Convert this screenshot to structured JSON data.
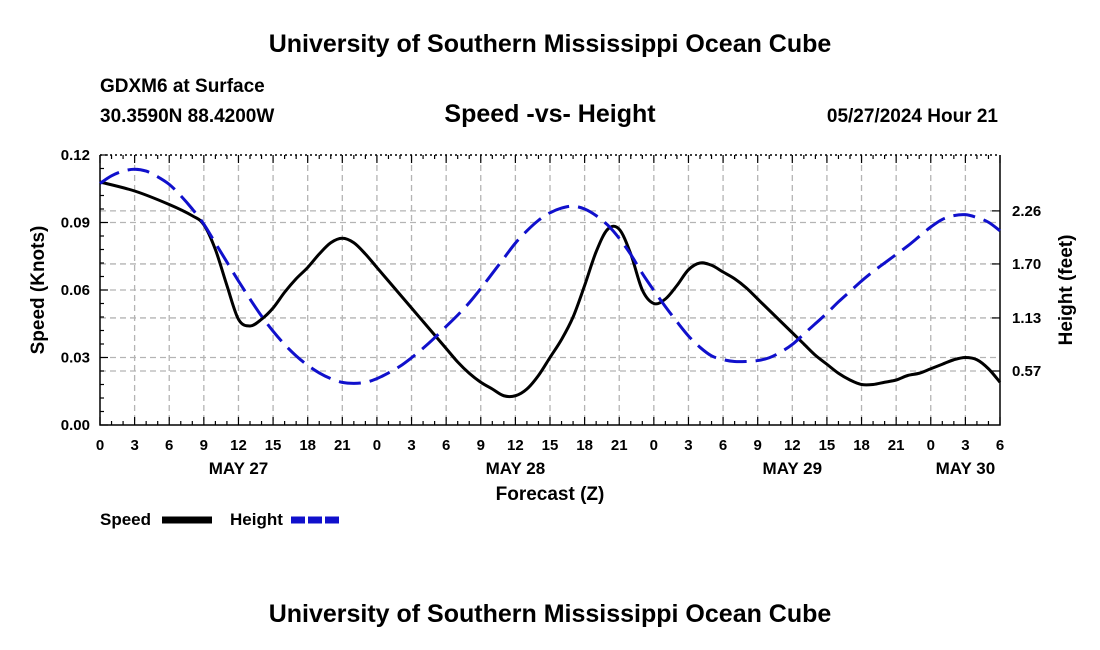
{
  "page": {
    "title_top": "University of Southern Mississippi Ocean Cube",
    "title_bottom": "University of Southern Mississippi Ocean Cube",
    "station": "GDXM6 at Surface",
    "coords": "30.3590N  88.4200W",
    "subtitle": "Speed -vs- Height",
    "datetime": "05/27/2024 Hour 21"
  },
  "colors": {
    "speed": "#000000",
    "height": "#1010cc",
    "grid": "#b4b4b4"
  },
  "chart_data": {
    "type": "line",
    "title": "Speed -vs- Height",
    "xlabel": "Forecast (Z)",
    "ylabel": "Speed (Knots)",
    "y2label": "Height (feet)",
    "x_unit": "hours from 00Z May 27",
    "xlim": [
      0,
      78
    ],
    "ylim": [
      0,
      0.12
    ],
    "y2lim": [
      0,
      2.85
    ],
    "yticks": [
      0.0,
      0.03,
      0.06,
      0.09,
      0.12
    ],
    "ytick_labels": [
      "0.00",
      "0.03",
      "0.06",
      "0.09",
      "0.12"
    ],
    "y2ticks": [
      0.57,
      1.13,
      1.7,
      2.26
    ],
    "y2tick_labels": [
      "0.57",
      "1.13",
      "1.70",
      "2.26"
    ],
    "xticks": [
      0,
      3,
      6,
      9,
      12,
      15,
      18,
      21,
      24,
      27,
      30,
      33,
      36,
      39,
      42,
      45,
      48,
      51,
      54,
      57,
      60,
      63,
      66,
      69,
      72,
      75,
      78
    ],
    "xtick_labels": [
      "0",
      "3",
      "6",
      "9",
      "12",
      "15",
      "18",
      "21",
      "0",
      "3",
      "6",
      "9",
      "12",
      "15",
      "18",
      "21",
      "0",
      "3",
      "6",
      "9",
      "12",
      "15",
      "18",
      "21",
      "0",
      "3",
      "6"
    ],
    "date_labels": [
      {
        "x": 12,
        "text": "MAY 27"
      },
      {
        "x": 36,
        "text": "MAY 28"
      },
      {
        "x": 60,
        "text": "MAY 29"
      },
      {
        "x": 75,
        "text": "MAY 30"
      }
    ],
    "grid": true,
    "legend": [
      {
        "name": "Speed",
        "style": "solid"
      },
      {
        "name": "Height",
        "style": "dashed"
      }
    ],
    "legend_position": "bottom-left",
    "series": [
      {
        "name": "Speed",
        "axis": "left",
        "style": "solid",
        "x": [
          0,
          3,
          6,
          8,
          9,
          10,
          11,
          12,
          13,
          14,
          15,
          16,
          17,
          18,
          19,
          20,
          21,
          22,
          23,
          24,
          25,
          26,
          27,
          28,
          29,
          30,
          31,
          32,
          33,
          34,
          35,
          36,
          37,
          38,
          39,
          40,
          41,
          42,
          43,
          44,
          45,
          46,
          47,
          48,
          49,
          50,
          51,
          52,
          53,
          54,
          55,
          56,
          57,
          58,
          59,
          60,
          61,
          62,
          63,
          64,
          65,
          66,
          67,
          68,
          69,
          70,
          71,
          72,
          73,
          74,
          75,
          76,
          77,
          78
        ],
        "values": [
          0.108,
          0.104,
          0.098,
          0.093,
          0.089,
          0.078,
          0.062,
          0.047,
          0.044,
          0.047,
          0.052,
          0.059,
          0.065,
          0.07,
          0.076,
          0.081,
          0.083,
          0.081,
          0.076,
          0.07,
          0.064,
          0.058,
          0.052,
          0.046,
          0.04,
          0.034,
          0.028,
          0.023,
          0.019,
          0.016,
          0.013,
          0.013,
          0.016,
          0.022,
          0.03,
          0.038,
          0.048,
          0.062,
          0.077,
          0.087,
          0.087,
          0.076,
          0.06,
          0.054,
          0.056,
          0.062,
          0.069,
          0.072,
          0.071,
          0.068,
          0.065,
          0.061,
          0.056,
          0.051,
          0.046,
          0.041,
          0.036,
          0.031,
          0.027,
          0.023,
          0.02,
          0.018,
          0.018,
          0.019,
          0.02,
          0.022,
          0.023,
          0.025,
          0.027,
          0.029,
          0.03,
          0.029,
          0.025,
          0.019
        ]
      },
      {
        "name": "Height",
        "axis": "right",
        "style": "dashed",
        "x": [
          0,
          1,
          2,
          3,
          4,
          5,
          6,
          7,
          8,
          9,
          10,
          11,
          12,
          13,
          14,
          15,
          16,
          17,
          18,
          19,
          20,
          21,
          22,
          23,
          24,
          25,
          26,
          27,
          28,
          29,
          30,
          31,
          32,
          33,
          34,
          35,
          36,
          37,
          38,
          39,
          40,
          41,
          42,
          43,
          44,
          45,
          46,
          47,
          48,
          49,
          50,
          51,
          52,
          53,
          54,
          55,
          56,
          57,
          58,
          59,
          60,
          61,
          62,
          63,
          64,
          65,
          66,
          67,
          68,
          69,
          70,
          71,
          72,
          73,
          74,
          75,
          76,
          77,
          78
        ],
        "values": [
          2.55,
          2.63,
          2.68,
          2.7,
          2.68,
          2.62,
          2.54,
          2.42,
          2.28,
          2.12,
          1.92,
          1.72,
          1.52,
          1.33,
          1.15,
          0.99,
          0.85,
          0.73,
          0.63,
          0.55,
          0.49,
          0.45,
          0.44,
          0.45,
          0.49,
          0.55,
          0.62,
          0.71,
          0.81,
          0.92,
          1.04,
          1.16,
          1.29,
          1.44,
          1.6,
          1.76,
          1.92,
          2.05,
          2.16,
          2.24,
          2.29,
          2.31,
          2.28,
          2.21,
          2.11,
          1.97,
          1.8,
          1.6,
          1.42,
          1.25,
          1.09,
          0.94,
          0.82,
          0.73,
          0.69,
          0.67,
          0.67,
          0.68,
          0.71,
          0.77,
          0.85,
          0.96,
          1.07,
          1.18,
          1.3,
          1.41,
          1.52,
          1.62,
          1.71,
          1.8,
          1.89,
          1.99,
          2.09,
          2.17,
          2.21,
          2.22,
          2.19,
          2.14,
          2.05
        ]
      }
    ]
  }
}
